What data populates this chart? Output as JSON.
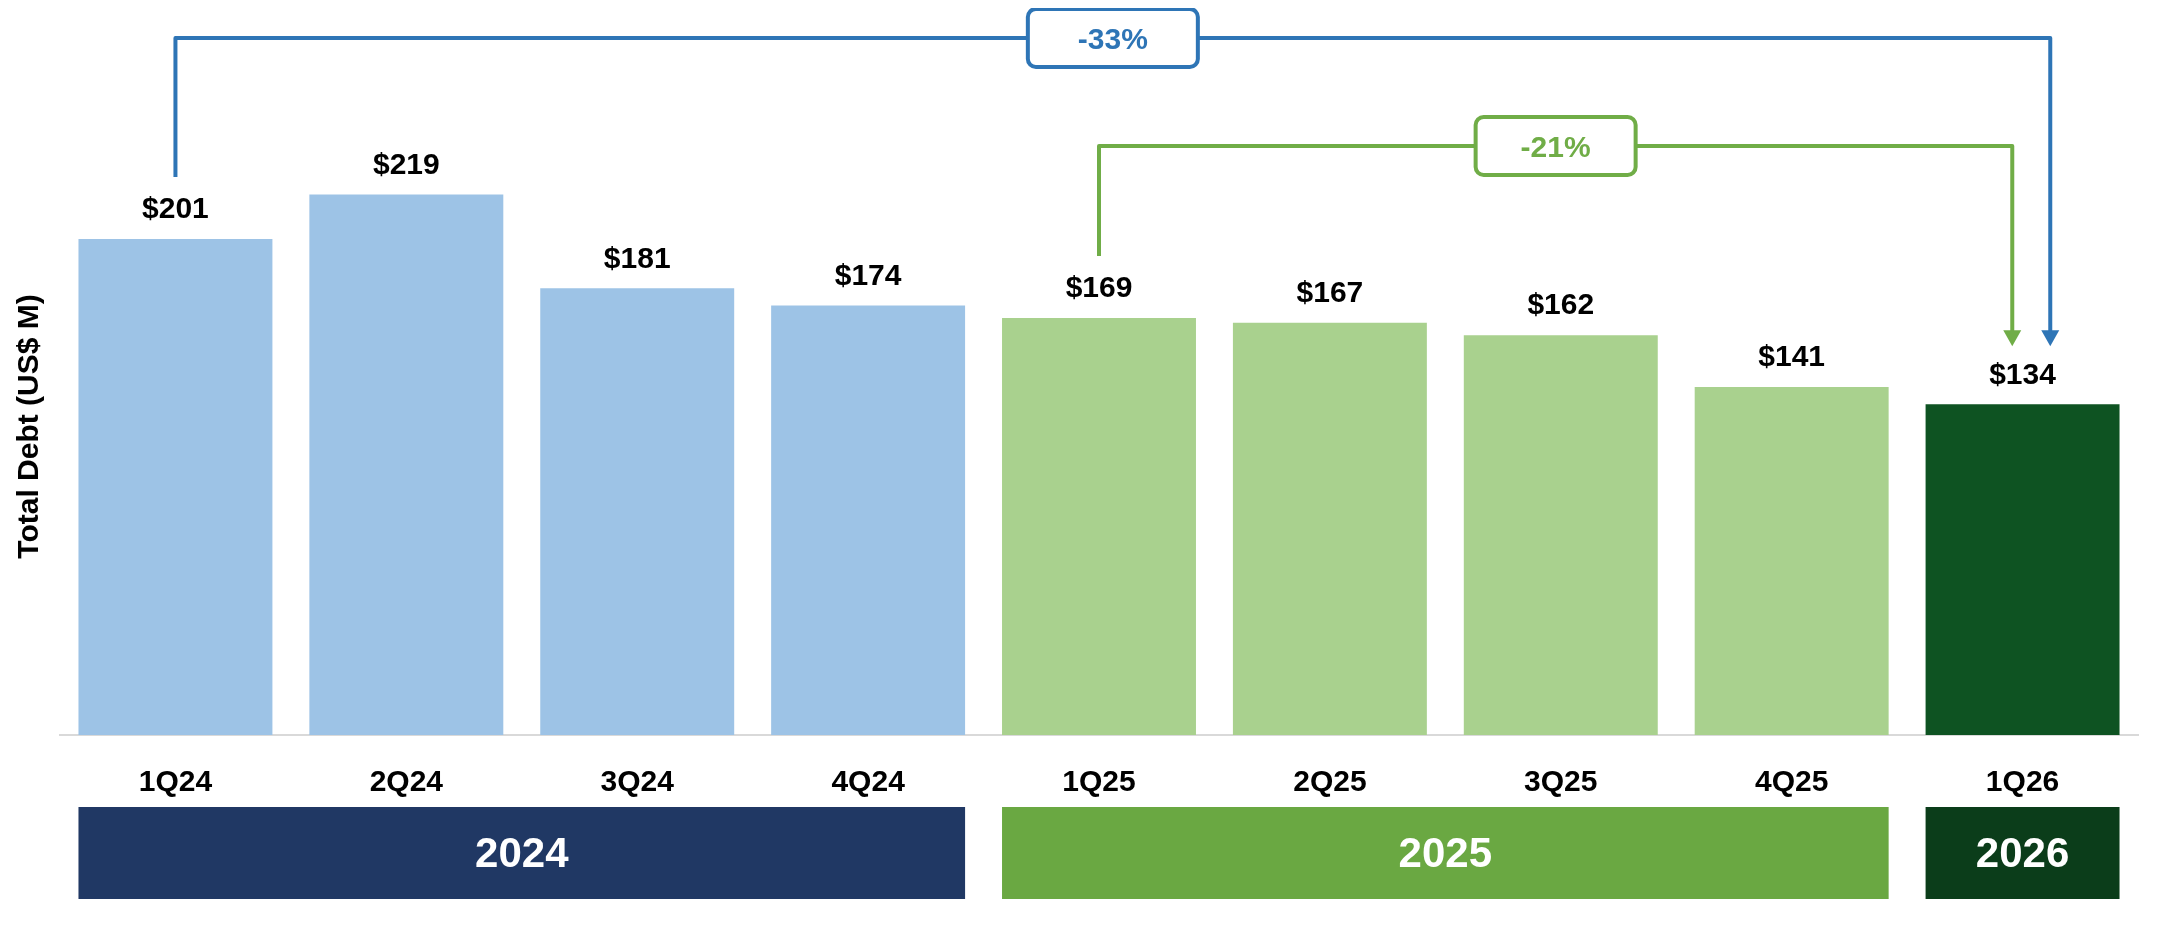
{
  "chart_data": {
    "type": "bar",
    "ylabel": "Total Debt (US$ M)",
    "grid": false,
    "legend": false,
    "categories": [
      "1Q24",
      "2Q24",
      "3Q24",
      "4Q24",
      "1Q25",
      "2Q25",
      "3Q25",
      "4Q25",
      "1Q26"
    ],
    "series": [
      {
        "name": "2024",
        "color": "#9dc3e6",
        "values": [
          201,
          219,
          181,
          174,
          null,
          null,
          null,
          null,
          null
        ],
        "value_labels": [
          "$201",
          "$219",
          "$181",
          "$174",
          null,
          null,
          null,
          null,
          null
        ]
      },
      {
        "name": "2025",
        "color": "#a9d18e",
        "values": [
          null,
          null,
          null,
          null,
          169,
          167,
          162,
          141,
          null
        ],
        "value_labels": [
          null,
          null,
          null,
          null,
          "$169",
          "$167",
          "$162",
          "$141",
          null
        ]
      },
      {
        "name": "2026",
        "color": "#0e5322",
        "values": [
          null,
          null,
          null,
          null,
          null,
          null,
          null,
          null,
          134
        ],
        "value_labels": [
          null,
          null,
          null,
          null,
          null,
          null,
          null,
          null,
          "$134"
        ]
      }
    ],
    "annotations": [
      "-33%",
      "-21%"
    ]
  }
}
